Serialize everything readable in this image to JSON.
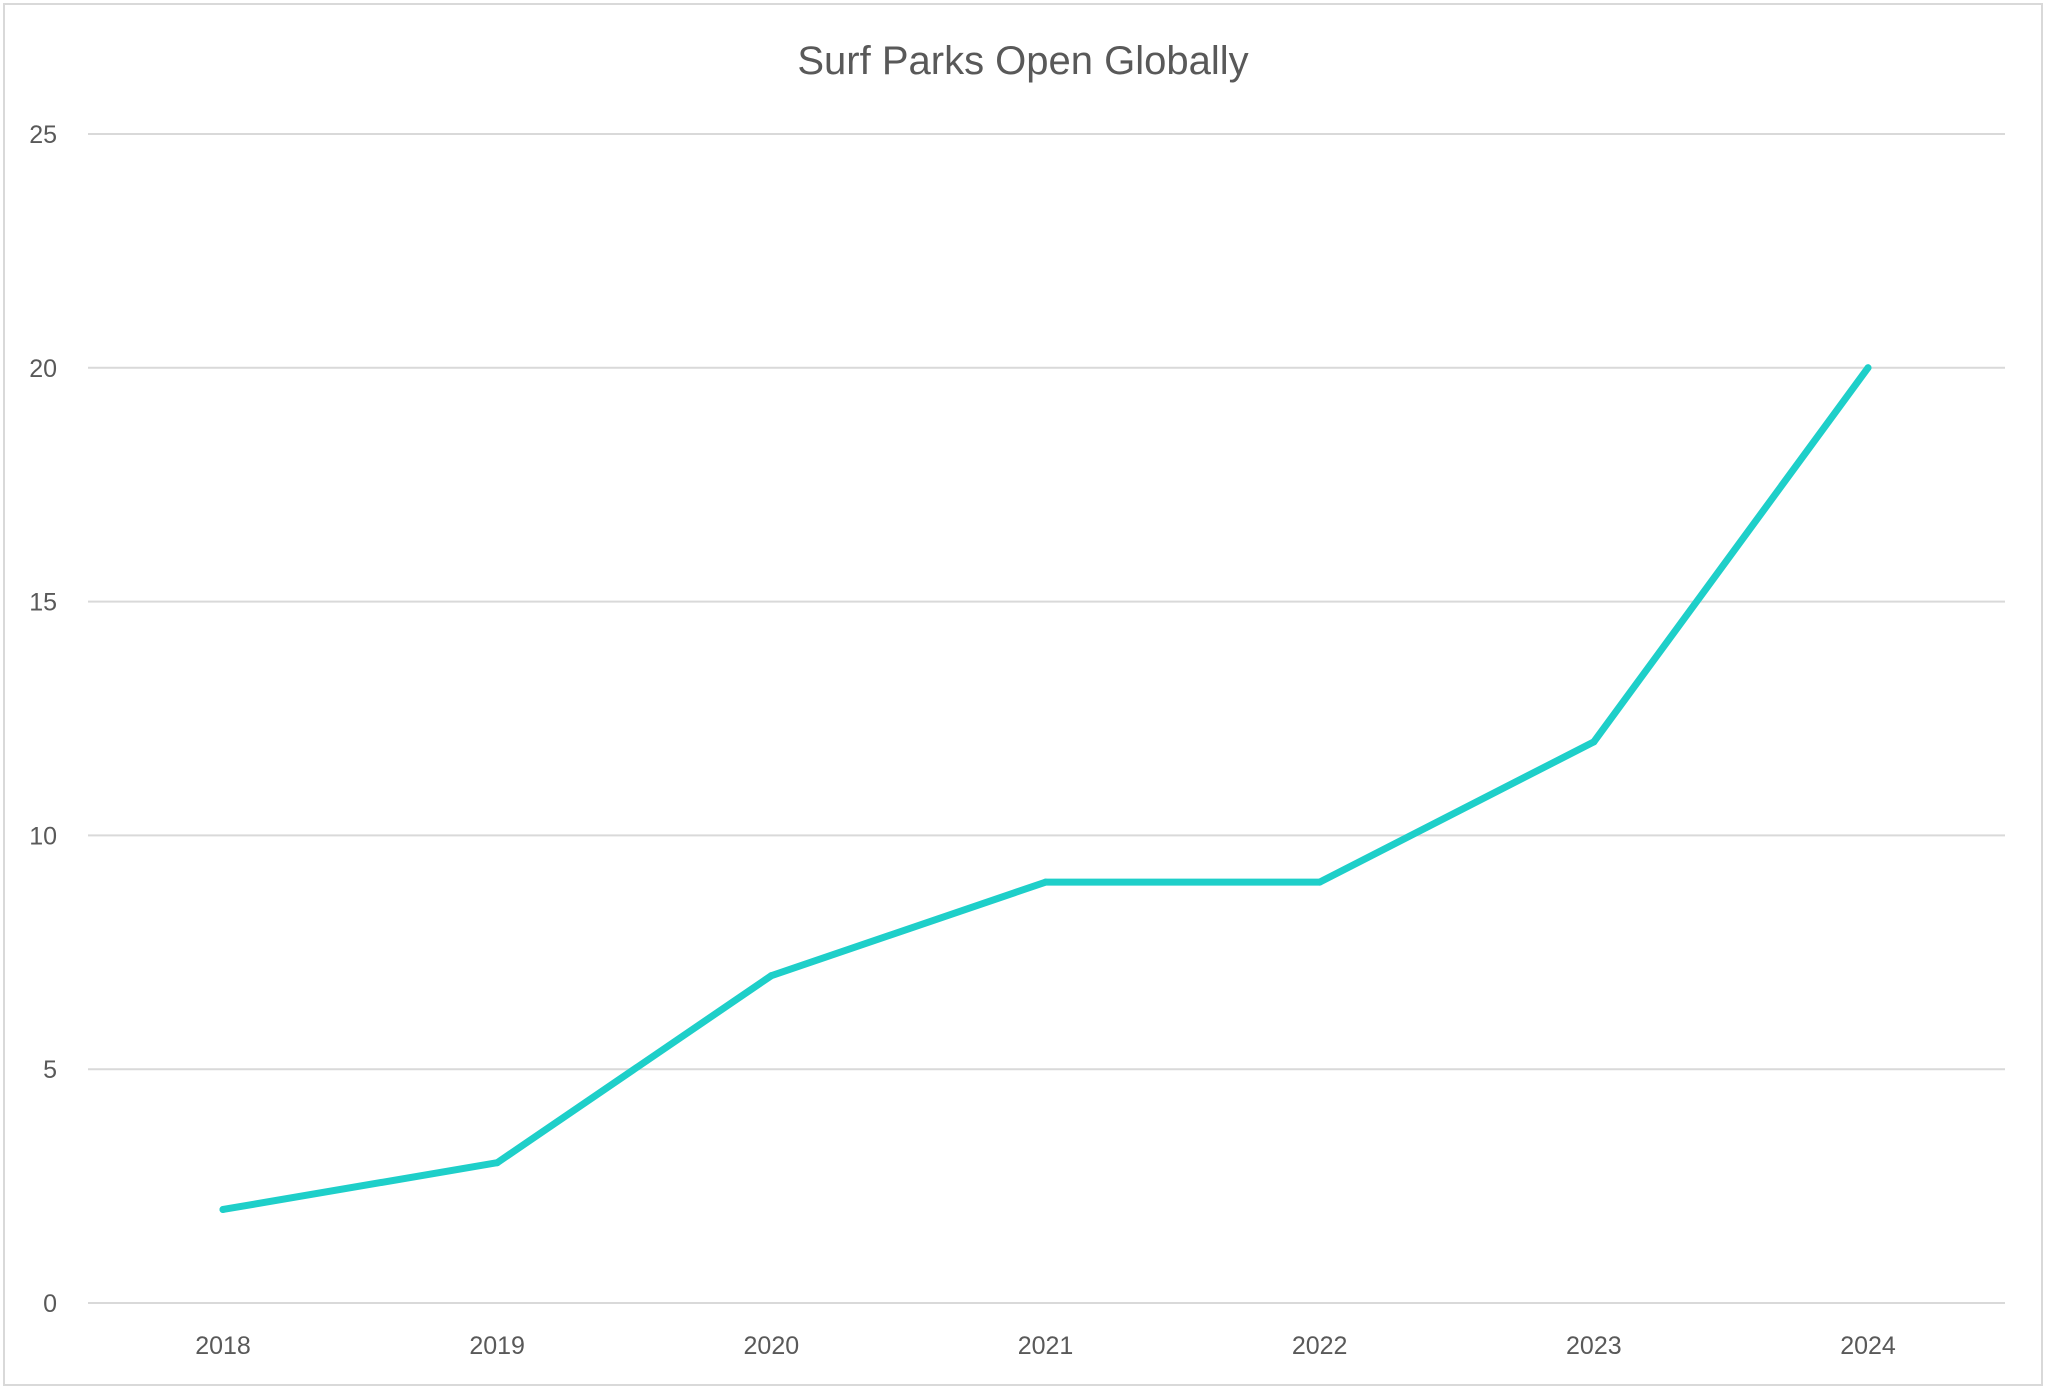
{
  "chart_data": {
    "type": "line",
    "title": "Surf Parks Open Globally",
    "xlabel": "",
    "ylabel": "",
    "categories": [
      "2018",
      "2019",
      "2020",
      "2021",
      "2022",
      "2023",
      "2024"
    ],
    "series": [
      {
        "values": [
          2,
          3,
          7,
          9,
          9,
          12,
          20
        ],
        "color": "#1ECFC9"
      }
    ],
    "ylim": [
      0,
      25
    ],
    "yticks": [
      0,
      5,
      10,
      15,
      20,
      25
    ],
    "grid": true,
    "legend": "none"
  }
}
